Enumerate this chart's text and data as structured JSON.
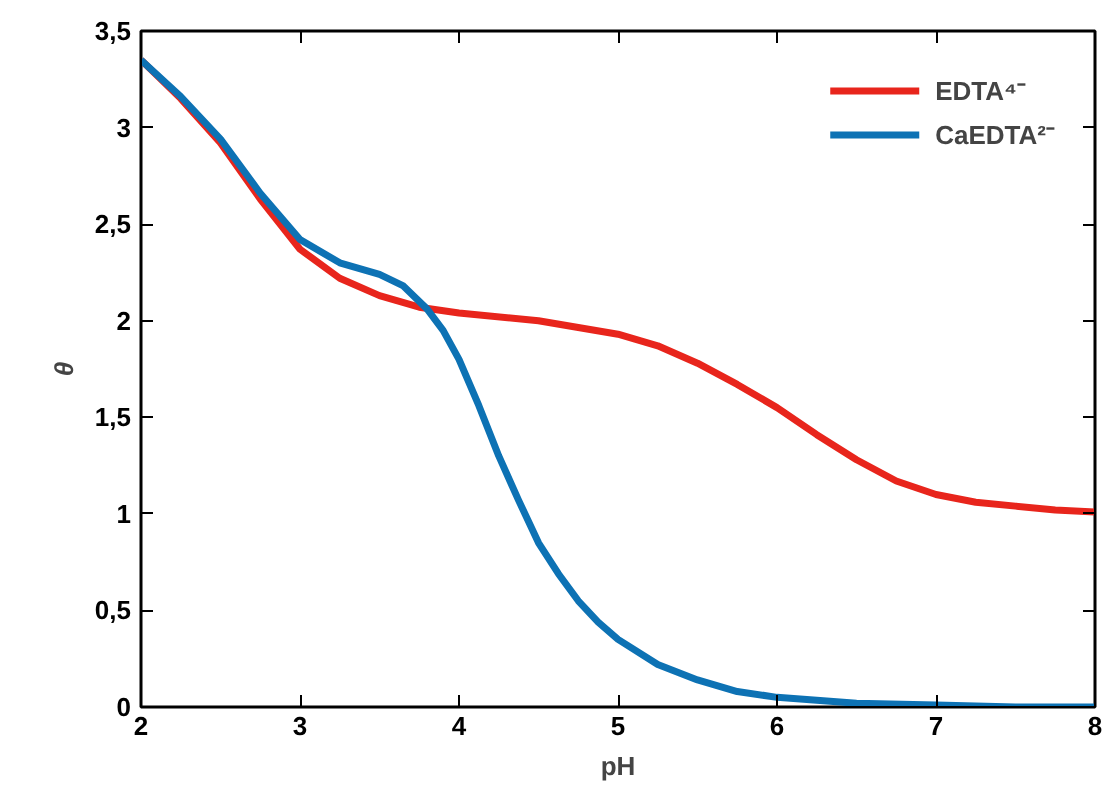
{
  "chart_data": {
    "type": "line",
    "xlabel": "pH",
    "ylabel": "θ",
    "xlim": [
      2,
      8
    ],
    "ylim": [
      0,
      3.5
    ],
    "xticks": [
      2,
      3,
      4,
      5,
      6,
      7,
      8
    ],
    "yticks": [
      0,
      {
        "value": 0.5,
        "label": "0,5"
      },
      1,
      {
        "value": 1.5,
        "label": "1,5"
      },
      2,
      {
        "value": 2.5,
        "label": "2,5"
      },
      3,
      {
        "value": 3.5,
        "label": "3,5"
      }
    ],
    "grid": false,
    "legend": "top right",
    "marker": "none",
    "line_style": "solid",
    "series": [
      {
        "name": "EDTA⁴⁻",
        "color": "#e8251c",
        "x": [
          2,
          2.25,
          2.5,
          2.75,
          3,
          3.25,
          3.5,
          3.75,
          4,
          4.5,
          5,
          5.25,
          5.5,
          5.75,
          6,
          6.25,
          6.5,
          6.75,
          7,
          7.25,
          7.5,
          7.75,
          8
        ],
        "values": [
          3.35,
          3.15,
          2.92,
          2.63,
          2.37,
          2.22,
          2.13,
          2.07,
          2.04,
          2.0,
          1.93,
          1.87,
          1.78,
          1.67,
          1.55,
          1.41,
          1.28,
          1.17,
          1.1,
          1.06,
          1.04,
          1.02,
          1.01
        ]
      },
      {
        "name": "CaEDTA²⁻",
        "color": "#0d72b4",
        "x": [
          2,
          2.25,
          2.5,
          2.75,
          3,
          3.25,
          3.5,
          3.65,
          3.8,
          3.9,
          4,
          4.125,
          4.25,
          4.375,
          4.5,
          4.625,
          4.75,
          4.875,
          5,
          5.25,
          5.5,
          5.75,
          6,
          6.5,
          7,
          7.5,
          8
        ],
        "values": [
          3.35,
          3.16,
          2.94,
          2.66,
          2.42,
          2.3,
          2.24,
          2.18,
          2.06,
          1.95,
          1.8,
          1.56,
          1.3,
          1.07,
          0.85,
          0.69,
          0.55,
          0.44,
          0.35,
          0.22,
          0.14,
          0.08,
          0.05,
          0.02,
          0.01,
          0.0,
          0.0
        ]
      }
    ]
  }
}
